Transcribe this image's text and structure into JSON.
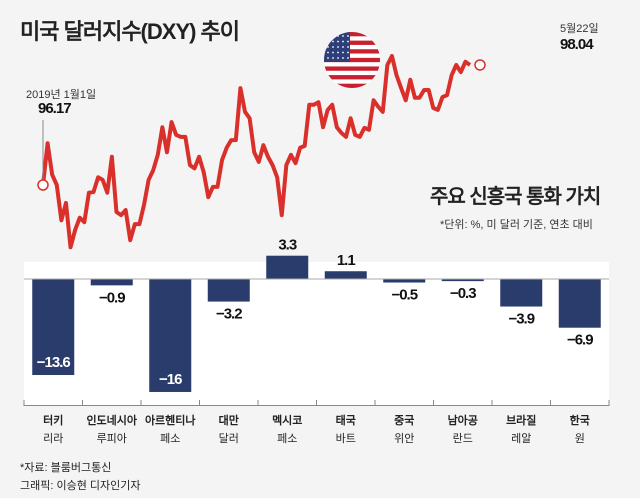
{
  "title": "미국 달러지수(DXY) 추이",
  "chart_data": [
    {
      "type": "line",
      "title": "미국 달러지수(DXY) 추이",
      "start_label": "2019년 1월1일",
      "start_value": "96.17",
      "end_label": "5월22일",
      "end_value": "98.04",
      "ylim": [
        95.0,
        98.4
      ],
      "color": "#d9302c",
      "values": [
        96.17,
        96.82,
        96.33,
        96.17,
        95.62,
        95.89,
        95.2,
        95.47,
        95.66,
        95.59,
        96.05,
        96.06,
        96.29,
        96.25,
        96.05,
        96.61,
        95.75,
        95.7,
        95.78,
        95.31,
        95.56,
        95.56,
        95.86,
        96.25,
        96.4,
        96.64,
        97.07,
        96.68,
        97.15,
        96.95,
        96.92,
        96.92,
        96.48,
        96.43,
        96.61,
        96.37,
        95.98,
        96.14,
        96.14,
        96.56,
        96.75,
        96.87,
        96.87,
        97.68,
        97.31,
        97.21,
        96.68,
        96.53,
        96.79,
        96.61,
        96.48,
        96.29,
        95.7,
        96.48,
        96.64,
        96.51,
        96.75,
        96.78,
        97.42,
        97.42,
        97.46,
        97.07,
        97.34,
        97.42,
        97.07,
        96.98,
        96.92,
        97.21,
        96.95,
        96.92,
        97.06,
        97.03,
        97.49,
        97.39,
        97.31,
        98.04,
        98.18,
        97.88,
        97.68,
        97.49,
        97.81,
        97.53,
        97.53,
        97.65,
        97.65,
        97.37,
        97.34,
        97.54,
        97.57,
        97.88,
        98.04,
        97.93,
        98.09,
        98.04
      ]
    },
    {
      "type": "bar",
      "title": "주요 신흥국 통화 가치",
      "unit_note": "*단위: %, 미 달러 기준, 연초 대비",
      "color": "#2a3c6b",
      "ylim": [
        -16,
        3.3
      ],
      "categories": [
        {
          "country": "터키",
          "currency": "리라"
        },
        {
          "country": "인도네시아",
          "currency": "루피아"
        },
        {
          "country": "아르헨티나",
          "currency": "페소"
        },
        {
          "country": "대만",
          "currency": "달러"
        },
        {
          "country": "멕시코",
          "currency": "페소"
        },
        {
          "country": "태국",
          "currency": "바트"
        },
        {
          "country": "중국",
          "currency": "위안"
        },
        {
          "country": "남아공",
          "currency": "란드"
        },
        {
          "country": "브라질",
          "currency": "레알"
        },
        {
          "country": "한국",
          "currency": "원"
        }
      ],
      "values": [
        -13.6,
        -0.9,
        -16,
        -3.2,
        3.3,
        1.1,
        -0.5,
        -0.3,
        -3.9,
        -6.9
      ],
      "labels": [
        "−13.6",
        "−0.9",
        "−16",
        "−3.2",
        "3.3",
        "1.1",
        "−0.5",
        "−0.3",
        "−3.9",
        "−6.9"
      ]
    }
  ],
  "footer": {
    "source": "*자료: 블룸버그통신",
    "credit": "그래픽: 이승현 디자인기자"
  }
}
